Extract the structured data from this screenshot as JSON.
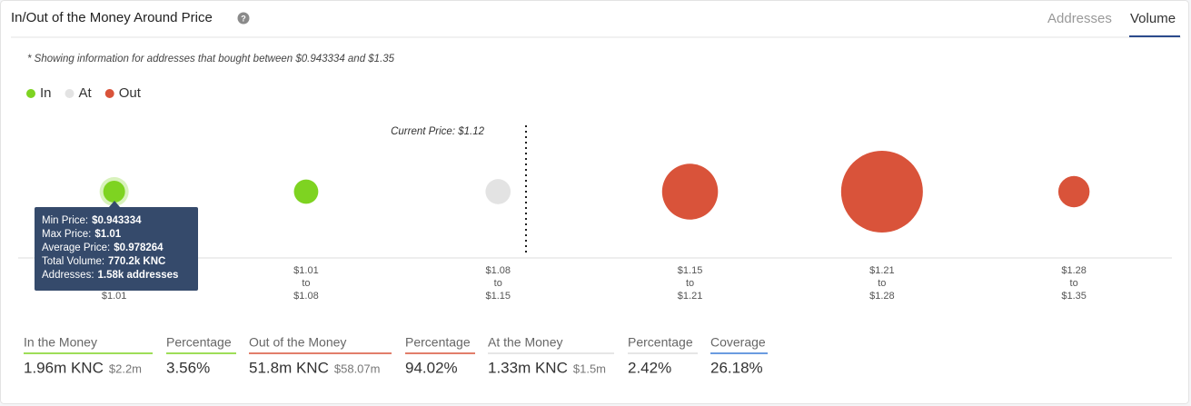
{
  "header": {
    "title": "In/Out of the Money Around Price",
    "tabs": [
      "Addresses",
      "Volume"
    ]
  },
  "note": "* Showing information for addresses that bought between $0.943334 and $1.35",
  "chart_data": {
    "type": "bubble",
    "categories": [
      [
        "$1.01"
      ],
      [
        "$1.01",
        "to",
        "$1.08"
      ],
      [
        "$1.08",
        "to",
        "$1.15"
      ],
      [
        "$1.15",
        "to",
        "$1.21"
      ],
      [
        "$1.21",
        "to",
        "$1.28"
      ],
      [
        "$1.28",
        "to",
        "$1.35"
      ]
    ],
    "series": [
      {
        "name": "In",
        "color": "#7ed321",
        "values": [
          0.77,
          1.19,
          null,
          null,
          null,
          null
        ]
      },
      {
        "name": "At",
        "color": "#e3e3e3",
        "values": [
          null,
          null,
          1.33,
          null,
          null,
          null
        ]
      },
      {
        "name": "Out",
        "color": "#d9533a",
        "values": [
          null,
          null,
          null,
          14.0,
          35.0,
          2.8
        ]
      }
    ],
    "annotations": [
      "Current Price: $1.12"
    ],
    "tooltip": [
      {
        "label": "Min Price:",
        "value": "$0.943334"
      },
      {
        "label": "Max Price:",
        "value": "$1.01"
      },
      {
        "label": "Average Price:",
        "value": "$0.978264"
      },
      {
        "label": "Total Volume:",
        "value": "770.2k KNC"
      },
      {
        "label": "Addresses:",
        "value": "1.58k addresses"
      }
    ]
  },
  "stats": [
    {
      "label": "In the Money",
      "value": "1.96m KNC",
      "sub": "$2.2m"
    },
    {
      "label": "Percentage",
      "value": "3.56%"
    },
    {
      "label": "Out of the Money",
      "value": "51.8m KNC",
      "sub": "$58.07m"
    },
    {
      "label": "Percentage",
      "value": "94.02%"
    },
    {
      "label": "At the Money",
      "value": "1.33m KNC",
      "sub": "$1.5m"
    },
    {
      "label": "Percentage",
      "value": "2.42%"
    },
    {
      "label": "Coverage",
      "value": "26.18%"
    }
  ]
}
